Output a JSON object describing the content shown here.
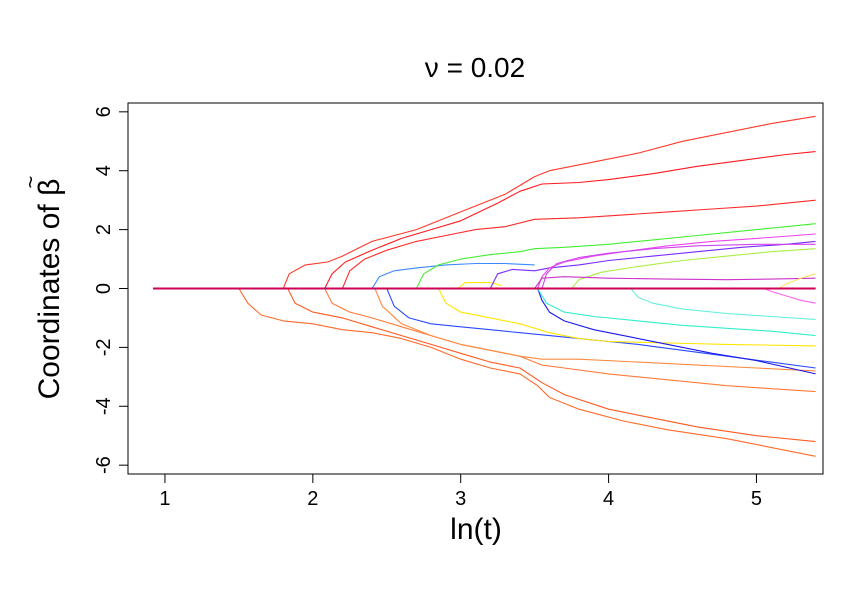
{
  "chart_data": {
    "type": "line",
    "title": "ν = 0.02",
    "xlabel": "ln(t)",
    "ylabel": "Coordinates of β",
    "ylabel_accent": "~",
    "xlim": [
      0.75,
      5.45
    ],
    "ylim": [
      -6.3,
      6.3
    ],
    "xticks": [
      1,
      2,
      3,
      4,
      5
    ],
    "yticks": [
      -6,
      -4,
      -2,
      0,
      2,
      4,
      6
    ],
    "grid": false,
    "legend": "none",
    "series": [
      {
        "color": "#ff3a2a",
        "points": [
          [
            0.92,
            0
          ],
          [
            1.8,
            0
          ],
          [
            1.84,
            0.5
          ],
          [
            1.95,
            0.8
          ],
          [
            2.1,
            0.9
          ],
          [
            2.2,
            1.1
          ],
          [
            2.4,
            1.6
          ],
          [
            2.7,
            2.0
          ],
          [
            3.0,
            2.6
          ],
          [
            3.3,
            3.2
          ],
          [
            3.5,
            3.8
          ],
          [
            3.6,
            4.0
          ],
          [
            3.9,
            4.3
          ],
          [
            4.2,
            4.6
          ],
          [
            4.5,
            5.0
          ],
          [
            4.8,
            5.3
          ],
          [
            5.1,
            5.6
          ],
          [
            5.4,
            5.85
          ]
        ]
      },
      {
        "color": "#ff1a20",
        "points": [
          [
            0.92,
            0
          ],
          [
            2.08,
            0
          ],
          [
            2.13,
            0.5
          ],
          [
            2.22,
            0.9
          ],
          [
            2.4,
            1.3
          ],
          [
            2.6,
            1.7
          ],
          [
            2.8,
            2.0
          ],
          [
            3.0,
            2.3
          ],
          [
            3.25,
            2.9
          ],
          [
            3.4,
            3.3
          ],
          [
            3.55,
            3.55
          ],
          [
            3.8,
            3.6
          ],
          [
            4.0,
            3.7
          ],
          [
            4.3,
            3.9
          ],
          [
            4.6,
            4.15
          ],
          [
            4.9,
            4.35
          ],
          [
            5.2,
            4.55
          ],
          [
            5.4,
            4.65
          ]
        ]
      },
      {
        "color": "#ff2a2a",
        "points": [
          [
            0.92,
            0
          ],
          [
            2.2,
            0
          ],
          [
            2.25,
            0.6
          ],
          [
            2.35,
            1.0
          ],
          [
            2.5,
            1.3
          ],
          [
            2.7,
            1.6
          ],
          [
            2.9,
            1.8
          ],
          [
            3.1,
            2.0
          ],
          [
            3.3,
            2.1
          ],
          [
            3.5,
            2.35
          ],
          [
            3.8,
            2.4
          ],
          [
            4.1,
            2.5
          ],
          [
            4.4,
            2.6
          ],
          [
            4.7,
            2.7
          ],
          [
            5.0,
            2.8
          ],
          [
            5.4,
            3.0
          ]
        ]
      },
      {
        "color": "#ff6a2a",
        "points": [
          [
            0.92,
            0
          ],
          [
            1.5,
            0
          ],
          [
            1.56,
            -0.5
          ],
          [
            1.65,
            -0.9
          ],
          [
            1.8,
            -1.1
          ],
          [
            2.0,
            -1.2
          ],
          [
            2.2,
            -1.4
          ],
          [
            2.4,
            -1.5
          ],
          [
            2.6,
            -1.7
          ],
          [
            2.8,
            -2.0
          ],
          [
            3.0,
            -2.4
          ],
          [
            3.2,
            -2.7
          ],
          [
            3.4,
            -2.9
          ],
          [
            3.52,
            -3.3
          ],
          [
            3.6,
            -3.7
          ],
          [
            3.8,
            -4.1
          ],
          [
            4.1,
            -4.5
          ],
          [
            4.4,
            -4.8
          ],
          [
            4.8,
            -5.1
          ],
          [
            5.4,
            -5.7
          ]
        ]
      },
      {
        "color": "#ff5a20",
        "points": [
          [
            0.92,
            0
          ],
          [
            1.83,
            0
          ],
          [
            1.88,
            -0.5
          ],
          [
            2.0,
            -0.8
          ],
          [
            2.2,
            -1.0
          ],
          [
            2.4,
            -1.3
          ],
          [
            2.6,
            -1.6
          ],
          [
            2.8,
            -1.9
          ],
          [
            3.0,
            -2.2
          ],
          [
            3.2,
            -2.5
          ],
          [
            3.4,
            -2.7
          ],
          [
            3.55,
            -3.2
          ],
          [
            3.7,
            -3.6
          ],
          [
            4.0,
            -4.1
          ],
          [
            4.3,
            -4.4
          ],
          [
            4.6,
            -4.7
          ],
          [
            5.0,
            -5.0
          ],
          [
            5.4,
            -5.2
          ]
        ]
      },
      {
        "color": "#ff7a3a",
        "points": [
          [
            0.92,
            0
          ],
          [
            2.08,
            0
          ],
          [
            2.13,
            -0.5
          ],
          [
            2.25,
            -0.8
          ],
          [
            2.4,
            -1.0
          ],
          [
            2.6,
            -1.3
          ],
          [
            2.8,
            -1.6
          ],
          [
            3.0,
            -1.9
          ],
          [
            3.2,
            -2.1
          ],
          [
            3.4,
            -2.3
          ],
          [
            3.55,
            -2.6
          ],
          [
            3.7,
            -2.7
          ],
          [
            4.0,
            -2.9
          ],
          [
            4.4,
            -3.1
          ],
          [
            4.8,
            -3.3
          ],
          [
            5.4,
            -3.5
          ]
        ]
      },
      {
        "color": "#ff8a40",
        "points": [
          [
            0.92,
            0
          ],
          [
            2.42,
            0
          ],
          [
            2.47,
            -0.6
          ],
          [
            2.6,
            -1.2
          ],
          [
            2.8,
            -1.6
          ],
          [
            3.0,
            -1.9
          ],
          [
            3.2,
            -2.1
          ],
          [
            3.4,
            -2.3
          ],
          [
            3.55,
            -2.4
          ],
          [
            3.8,
            -2.4
          ],
          [
            4.2,
            -2.5
          ],
          [
            4.6,
            -2.6
          ],
          [
            5.0,
            -2.7
          ],
          [
            5.4,
            -2.8
          ]
        ]
      },
      {
        "color": "#3a8aff",
        "points": [
          [
            0.92,
            0
          ],
          [
            2.4,
            0
          ],
          [
            2.45,
            0.4
          ],
          [
            2.55,
            0.6
          ],
          [
            2.7,
            0.7
          ],
          [
            2.9,
            0.8
          ],
          [
            3.1,
            0.85
          ],
          [
            3.3,
            0.85
          ],
          [
            3.5,
            0.8
          ]
        ]
      },
      {
        "color": "#2a4aff",
        "points": [
          [
            0.92,
            0
          ],
          [
            2.5,
            0
          ],
          [
            2.55,
            -0.6
          ],
          [
            2.65,
            -1.0
          ],
          [
            2.8,
            -1.2
          ],
          [
            3.0,
            -1.3
          ],
          [
            3.2,
            -1.4
          ],
          [
            3.4,
            -1.5
          ],
          [
            3.6,
            -1.6
          ],
          [
            3.8,
            -1.7
          ],
          [
            4.0,
            -1.8
          ],
          [
            4.2,
            -1.9
          ],
          [
            4.5,
            -2.1
          ],
          [
            4.8,
            -2.3
          ],
          [
            5.1,
            -2.5
          ],
          [
            5.4,
            -2.7
          ]
        ]
      },
      {
        "color": "#44ee33",
        "points": [
          [
            0.92,
            0
          ],
          [
            2.7,
            0
          ],
          [
            2.75,
            0.5
          ],
          [
            2.85,
            0.8
          ],
          [
            3.0,
            1.0
          ],
          [
            3.2,
            1.15
          ],
          [
            3.4,
            1.25
          ],
          [
            3.5,
            1.35
          ],
          [
            3.7,
            1.4
          ],
          [
            4.0,
            1.5
          ],
          [
            4.3,
            1.65
          ],
          [
            4.6,
            1.8
          ],
          [
            4.9,
            1.95
          ],
          [
            5.2,
            2.1
          ],
          [
            5.4,
            2.2
          ]
        ]
      },
      {
        "color": "#ffe600",
        "points": [
          [
            0.92,
            0
          ],
          [
            2.85,
            0
          ],
          [
            2.9,
            -0.5
          ],
          [
            3.0,
            -0.8
          ],
          [
            3.2,
            -1.0
          ],
          [
            3.4,
            -1.2
          ],
          [
            3.6,
            -1.5
          ],
          [
            3.8,
            -1.7
          ],
          [
            4.0,
            -1.8
          ],
          [
            4.4,
            -1.85
          ],
          [
            4.8,
            -1.9
          ],
          [
            5.4,
            -1.95
          ]
        ]
      },
      {
        "color": "#ffe600",
        "points": [
          [
            0.92,
            0
          ],
          [
            2.98,
            0
          ],
          [
            3.03,
            0.2
          ],
          [
            3.1,
            0.2
          ],
          [
            3.2,
            0.2
          ],
          [
            3.28,
            0.1
          ]
        ]
      },
      {
        "color": "#7a2aff",
        "points": [
          [
            0.92,
            0
          ],
          [
            3.2,
            0
          ],
          [
            3.25,
            0.5
          ],
          [
            3.35,
            0.65
          ],
          [
            3.5,
            0.6
          ],
          [
            3.6,
            0.7
          ],
          [
            3.8,
            0.8
          ],
          [
            4.0,
            0.95
          ],
          [
            4.3,
            1.1
          ],
          [
            4.6,
            1.25
          ],
          [
            4.9,
            1.4
          ],
          [
            5.2,
            1.5
          ],
          [
            5.4,
            1.6
          ]
        ]
      },
      {
        "color": "#1a1aee",
        "points": [
          [
            0.92,
            0
          ],
          [
            3.52,
            0
          ],
          [
            3.55,
            -0.4
          ],
          [
            3.6,
            -0.8
          ],
          [
            3.7,
            -1.1
          ],
          [
            3.9,
            -1.4
          ],
          [
            4.1,
            -1.6
          ],
          [
            4.4,
            -1.9
          ],
          [
            4.7,
            -2.2
          ],
          [
            5.0,
            -2.45
          ],
          [
            5.4,
            -2.9
          ]
        ]
      },
      {
        "color": "#ee44ee",
        "points": [
          [
            0.92,
            0
          ],
          [
            3.52,
            0
          ],
          [
            3.55,
            0.4
          ],
          [
            3.6,
            0.7
          ],
          [
            3.7,
            0.9
          ],
          [
            3.9,
            1.1
          ],
          [
            4.1,
            1.25
          ],
          [
            4.4,
            1.45
          ],
          [
            4.7,
            1.6
          ],
          [
            5.0,
            1.7
          ],
          [
            5.4,
            1.85
          ]
        ]
      },
      {
        "color": "#cc44ee",
        "points": [
          [
            0.92,
            0
          ],
          [
            3.55,
            0
          ],
          [
            3.58,
            0.5
          ],
          [
            3.65,
            0.85
          ],
          [
            3.8,
            1.05
          ],
          [
            4.0,
            1.2
          ],
          [
            4.3,
            1.35
          ],
          [
            4.6,
            1.45
          ],
          [
            5.0,
            1.5
          ],
          [
            5.4,
            1.5
          ]
        ]
      },
      {
        "color": "#33eecc",
        "points": [
          [
            0.92,
            0
          ],
          [
            3.52,
            0
          ],
          [
            3.58,
            -0.5
          ],
          [
            3.7,
            -0.8
          ],
          [
            3.9,
            -0.95
          ],
          [
            4.2,
            -1.1
          ],
          [
            4.5,
            -1.25
          ],
          [
            4.8,
            -1.35
          ],
          [
            5.1,
            -1.45
          ],
          [
            5.4,
            -1.6
          ]
        ]
      },
      {
        "color": "#66eedd",
        "points": [
          [
            0.92,
            0
          ],
          [
            4.15,
            0
          ],
          [
            4.2,
            -0.3
          ],
          [
            4.3,
            -0.5
          ],
          [
            4.5,
            -0.7
          ],
          [
            4.8,
            -0.85
          ],
          [
            5.1,
            -0.95
          ],
          [
            5.4,
            -1.05
          ]
        ]
      },
      {
        "color": "#aaee44",
        "points": [
          [
            0.92,
            0
          ],
          [
            3.75,
            0
          ],
          [
            3.8,
            0.3
          ],
          [
            3.95,
            0.55
          ],
          [
            4.2,
            0.75
          ],
          [
            4.5,
            0.95
          ],
          [
            4.8,
            1.1
          ],
          [
            5.1,
            1.25
          ],
          [
            5.4,
            1.35
          ]
        ]
      },
      {
        "color": "#cc33cc",
        "points": [
          [
            0.92,
            0
          ],
          [
            3.5,
            0
          ],
          [
            3.55,
            0.35
          ],
          [
            3.7,
            0.4
          ],
          [
            4.0,
            0.35
          ],
          [
            4.4,
            0.32
          ],
          [
            4.8,
            0.3
          ],
          [
            5.1,
            0.32
          ],
          [
            5.4,
            0.35
          ]
        ]
      },
      {
        "color": "#ff66ee",
        "points": [
          [
            0.92,
            0
          ],
          [
            5.05,
            0
          ],
          [
            5.1,
            -0.1
          ],
          [
            5.2,
            -0.25
          ],
          [
            5.3,
            -0.4
          ],
          [
            5.4,
            -0.5
          ]
        ]
      },
      {
        "color": "#ffe066",
        "points": [
          [
            0.92,
            0
          ],
          [
            5.15,
            0
          ],
          [
            5.2,
            0.15
          ],
          [
            5.3,
            0.35
          ],
          [
            5.4,
            0.5
          ]
        ]
      },
      {
        "color": "#ff2a2a",
        "points": [
          [
            0.92,
            0
          ],
          [
            5.4,
            0
          ]
        ]
      },
      {
        "color": "#cc0055",
        "points": [
          [
            0.92,
            0
          ],
          [
            5.4,
            0
          ]
        ]
      }
    ]
  }
}
